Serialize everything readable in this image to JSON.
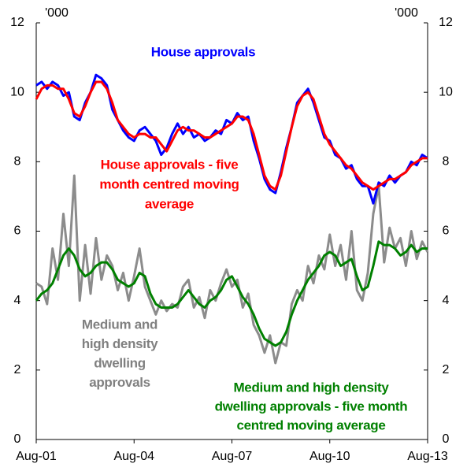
{
  "chart_data": {
    "type": "line",
    "y_unit_label": "'000",
    "y2_unit_label": "'000",
    "categories": [
      "Aug-01",
      null,
      null,
      null,
      null,
      null,
      null,
      null,
      null,
      null,
      null,
      null,
      null,
      null,
      null,
      null,
      null,
      null,
      "Aug-04",
      null,
      null,
      null,
      null,
      null,
      null,
      null,
      null,
      null,
      null,
      null,
      null,
      null,
      null,
      null,
      null,
      null,
      "Aug-07",
      null,
      null,
      null,
      null,
      null,
      null,
      null,
      null,
      null,
      null,
      null,
      null,
      null,
      null,
      null,
      null,
      null,
      "Aug-10",
      null,
      null,
      null,
      null,
      null,
      null,
      null,
      null,
      null,
      null,
      null,
      null,
      null,
      null,
      null,
      null,
      null,
      "Aug-13"
    ],
    "ylim": [
      0,
      12
    ],
    "yticks": [
      0,
      2,
      4,
      6,
      8,
      10,
      12
    ],
    "y2lim": [
      0,
      12
    ],
    "y2ticks": [
      0,
      2,
      4,
      6,
      8,
      10,
      12
    ],
    "series": [
      {
        "name": "Medium and high density dwelling approvals",
        "color": "#8c8c8c",
        "values": [
          4.5,
          4.4,
          3.9,
          5.5,
          4.6,
          6.5,
          5.0,
          7.6,
          4.0,
          5.6,
          4.2,
          5.8,
          4.6,
          5.3,
          5.0,
          4.3,
          4.8,
          4.0,
          4.7,
          5.5,
          4.4,
          4.0,
          3.6,
          4.0,
          3.7,
          3.9,
          3.8,
          4.4,
          4.6,
          3.8,
          4.1,
          3.5,
          4.3,
          4.0,
          4.5,
          4.9,
          4.4,
          4.6,
          3.8,
          4.2,
          3.3,
          3.0,
          2.5,
          3.0,
          2.2,
          2.8,
          2.7,
          3.9,
          4.3,
          4.0,
          5.0,
          4.5,
          5.3,
          4.9,
          5.9,
          5.0,
          5.6,
          4.6,
          6.0,
          4.3,
          4.0,
          4.8,
          6.5,
          7.3,
          5.1,
          6.1,
          5.5,
          5.8,
          5.0,
          6.0,
          5.2,
          5.7,
          5.4
        ]
      },
      {
        "name": "Medium and high density dwelling approvals - five month centred moving average",
        "color": "#008000",
        "values": [
          4.0,
          4.2,
          4.3,
          4.5,
          4.9,
          5.3,
          5.5,
          5.3,
          4.9,
          4.7,
          4.8,
          5.0,
          5.1,
          5.1,
          4.9,
          4.6,
          4.5,
          4.4,
          4.5,
          4.8,
          4.7,
          4.2,
          3.9,
          3.8,
          3.8,
          3.8,
          3.9,
          4.1,
          4.3,
          4.1,
          3.9,
          3.8,
          4.0,
          4.1,
          4.3,
          4.6,
          4.7,
          4.4,
          4.1,
          3.9,
          3.6,
          3.2,
          2.9,
          2.8,
          2.7,
          2.8,
          3.1,
          3.6,
          4.0,
          4.3,
          4.6,
          4.8,
          5.0,
          5.3,
          5.4,
          5.3,
          5.0,
          5.1,
          5.2,
          4.7,
          4.3,
          4.4,
          5.0,
          5.7,
          5.6,
          5.6,
          5.5,
          5.3,
          5.4,
          5.6,
          5.4,
          5.5,
          5.5
        ]
      },
      {
        "name": "House approvals",
        "color": "#0000ff",
        "values": [
          10.2,
          10.3,
          10.1,
          10.3,
          10.2,
          9.9,
          10.0,
          9.3,
          9.2,
          9.7,
          10.0,
          10.5,
          10.4,
          10.2,
          9.5,
          9.2,
          8.9,
          8.7,
          8.6,
          8.9,
          9.0,
          8.8,
          8.6,
          8.2,
          8.4,
          8.8,
          9.1,
          8.8,
          9.0,
          8.7,
          8.8,
          8.6,
          8.7,
          8.9,
          8.8,
          9.2,
          9.1,
          9.4,
          9.2,
          9.3,
          8.6,
          8.1,
          7.5,
          7.2,
          7.1,
          7.7,
          8.4,
          9.0,
          9.7,
          9.9,
          10.1,
          9.7,
          9.2,
          8.7,
          8.6,
          8.2,
          8.1,
          7.8,
          7.9,
          7.5,
          7.3,
          7.3,
          6.8,
          7.4,
          7.3,
          7.6,
          7.4,
          7.6,
          7.7,
          8.0,
          7.9,
          8.2,
          8.1
        ]
      },
      {
        "name": "House approvals - five month centred moving average",
        "color": "#ff0000",
        "values": [
          9.8,
          10.1,
          10.2,
          10.2,
          10.1,
          10.1,
          9.8,
          9.4,
          9.3,
          9.6,
          10.0,
          10.3,
          10.3,
          10.1,
          9.7,
          9.2,
          9.0,
          8.8,
          8.7,
          8.8,
          8.8,
          8.7,
          8.7,
          8.5,
          8.3,
          8.6,
          8.9,
          9.0,
          8.9,
          8.9,
          8.8,
          8.7,
          8.7,
          8.8,
          8.9,
          9.0,
          9.1,
          9.3,
          9.3,
          9.2,
          8.8,
          8.2,
          7.6,
          7.3,
          7.2,
          7.6,
          8.3,
          9.0,
          9.6,
          9.9,
          10.0,
          9.8,
          9.3,
          8.8,
          8.5,
          8.3,
          8.1,
          7.9,
          7.8,
          7.6,
          7.4,
          7.3,
          7.2,
          7.3,
          7.4,
          7.5,
          7.5,
          7.6,
          7.7,
          7.9,
          8.0,
          8.1,
          8.1
        ]
      }
    ],
    "annotations": [
      {
        "lines": [
          "House approvals"
        ],
        "color": "#0000ff"
      },
      {
        "lines": [
          "House approvals - five",
          "month centred moving",
          "average"
        ],
        "color": "#ff0000"
      },
      {
        "lines": [
          "Medium and",
          "high density",
          "dwelling",
          "approvals"
        ],
        "color": "#808080"
      },
      {
        "lines": [
          "Medium and high density",
          "dwelling approvals - five month",
          "centred moving average"
        ],
        "color": "#008000"
      }
    ]
  }
}
